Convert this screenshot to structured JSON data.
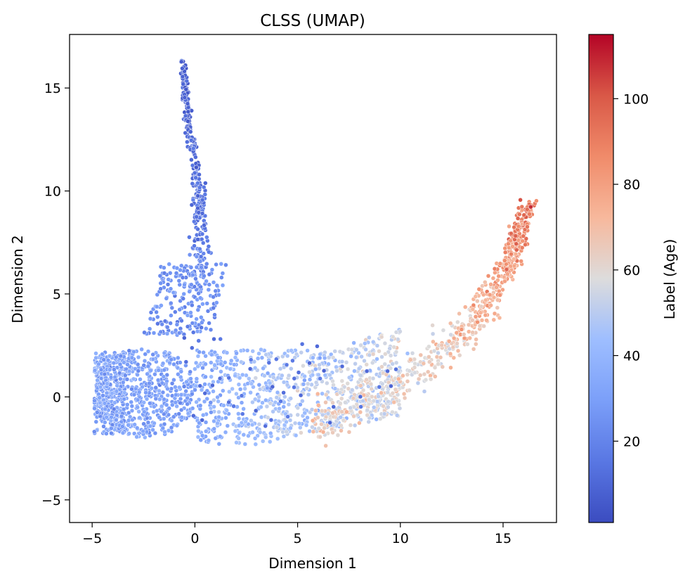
{
  "chart_data": {
    "type": "scatter",
    "title": "CLSS (UMAP)",
    "xlabel": "Dimension 1",
    "ylabel": "Dimension 2",
    "xlim": [
      -6.1,
      17.6
    ],
    "ylim": [
      -6.1,
      17.6
    ],
    "x_ticks": [
      -5,
      0,
      5,
      10,
      15
    ],
    "x_tick_labels": [
      "−5",
      "0",
      "5",
      "10",
      "15"
    ],
    "y_ticks": [
      -5,
      0,
      5,
      10,
      15
    ],
    "y_tick_labels": [
      "−5",
      "0",
      "5",
      "10",
      "15"
    ],
    "grid": false,
    "colorbar": {
      "label": "Label (Age)",
      "colormap": "coolwarm",
      "range": [
        1,
        115
      ],
      "ticks": [
        20,
        40,
        60,
        80,
        100
      ],
      "tick_labels": [
        "20",
        "40",
        "60",
        "80",
        "100"
      ]
    },
    "marker_edge_color": "#ffffff",
    "point_count_approx": 2700,
    "shapes_description": "vertical arm from (-0.7,16.5) down to (0,6); broad low-age blob around (-3,0); tail along y≈-2..2 from x=0 to 10; upper arc rising from (6,-1) to (16,9.5) with ages increasing along it",
    "arm_samples": [
      {
        "x": -0.6,
        "y": 16.3,
        "age": 8
      },
      {
        "x": -0.5,
        "y": 15.0,
        "age": 8
      },
      {
        "x": -0.4,
        "y": 13.8,
        "age": 9
      },
      {
        "x": -0.2,
        "y": 12.5,
        "age": 10
      },
      {
        "x": 0.1,
        "y": 11.0,
        "age": 11
      },
      {
        "x": 0.2,
        "y": 9.5,
        "age": 13
      },
      {
        "x": 0.3,
        "y": 8.0,
        "age": 15
      },
      {
        "x": 0.2,
        "y": 6.5,
        "age": 20
      },
      {
        "x": -0.2,
        "y": 5.0,
        "age": 25
      }
    ],
    "arc_samples": [
      {
        "x": 6.0,
        "y": -1.3,
        "age": 65
      },
      {
        "x": 8.0,
        "y": -0.3,
        "age": 60
      },
      {
        "x": 10.0,
        "y": 0.8,
        "age": 58
      },
      {
        "x": 12.0,
        "y": 2.0,
        "age": 62
      },
      {
        "x": 13.5,
        "y": 3.5,
        "age": 70
      },
      {
        "x": 14.5,
        "y": 5.0,
        "age": 76
      },
      {
        "x": 15.3,
        "y": 6.5,
        "age": 82
      },
      {
        "x": 15.8,
        "y": 8.0,
        "age": 90
      },
      {
        "x": 16.2,
        "y": 9.3,
        "age": 92
      }
    ]
  }
}
